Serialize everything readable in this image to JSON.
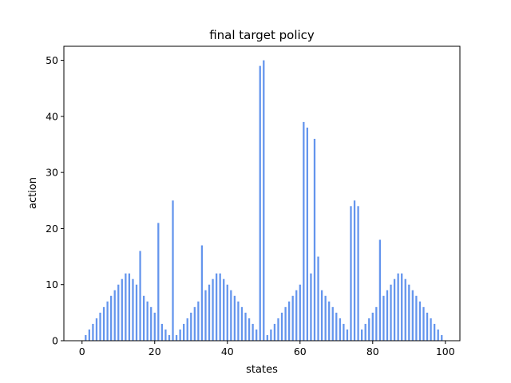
{
  "chart_data": {
    "type": "bar",
    "title": "final target policy",
    "xlabel": "states",
    "ylabel": "action",
    "xlim": [
      -5,
      104
    ],
    "ylim": [
      0,
      52.5
    ],
    "xticks": [
      0,
      20,
      40,
      60,
      80,
      100
    ],
    "yticks": [
      0,
      10,
      20,
      30,
      40,
      50
    ],
    "bar_color": "#6495ED",
    "grid": false,
    "x": [
      1,
      2,
      3,
      4,
      5,
      6,
      7,
      8,
      9,
      10,
      11,
      12,
      13,
      14,
      15,
      16,
      17,
      18,
      19,
      20,
      21,
      22,
      23,
      24,
      25,
      26,
      27,
      28,
      29,
      30,
      31,
      32,
      33,
      34,
      35,
      36,
      37,
      38,
      39,
      40,
      41,
      42,
      43,
      44,
      45,
      46,
      47,
      48,
      49,
      50,
      51,
      52,
      53,
      54,
      55,
      56,
      57,
      58,
      59,
      60,
      61,
      62,
      63,
      64,
      65,
      66,
      67,
      68,
      69,
      70,
      71,
      72,
      73,
      74,
      75,
      76,
      77,
      78,
      79,
      80,
      81,
      82,
      83,
      84,
      85,
      86,
      87,
      88,
      89,
      90,
      91,
      92,
      93,
      94,
      95,
      96,
      97,
      98,
      99
    ],
    "values": [
      1,
      2,
      3,
      4,
      5,
      6,
      7,
      8,
      9,
      10,
      11,
      12,
      12,
      11,
      10,
      16,
      8,
      7,
      6,
      5,
      21,
      3,
      2,
      1,
      25,
      1,
      2,
      3,
      4,
      5,
      6,
      7,
      17,
      9,
      10,
      11,
      12,
      12,
      11,
      10,
      9,
      8,
      7,
      6,
      5,
      4,
      3,
      2,
      49,
      50,
      1,
      2,
      3,
      4,
      5,
      6,
      7,
      8,
      9,
      10,
      39,
      38,
      12,
      36,
      15,
      9,
      8,
      7,
      6,
      5,
      4,
      3,
      2,
      24,
      25,
      24,
      2,
      3,
      4,
      5,
      6,
      18,
      8,
      9,
      10,
      11,
      12,
      12,
      11,
      10,
      9,
      8,
      7,
      6,
      5,
      4,
      3,
      2,
      1
    ]
  }
}
